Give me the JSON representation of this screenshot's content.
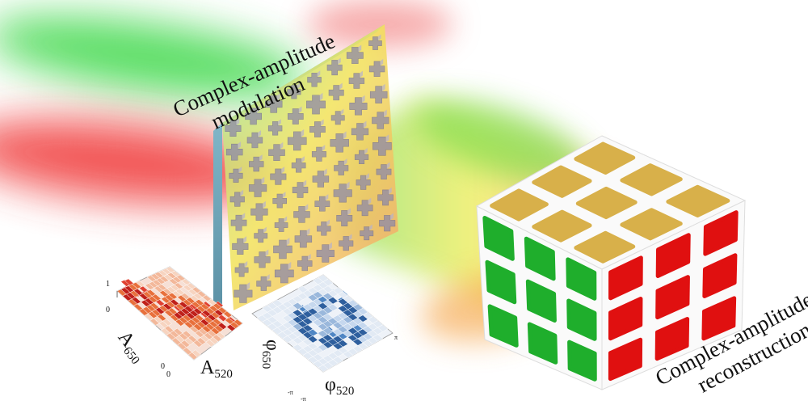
{
  "labels": {
    "modulation_line1": "Complex-amplitude",
    "modulation_line2": "modulation",
    "reconstruction_line1": "Complex-amplitude",
    "reconstruction_line2": "reconstruction"
  },
  "amplitude_plot": {
    "axis_a650": "A650",
    "axis_a650_main": "A",
    "axis_a650_sub": "650",
    "axis_a520_main": "A",
    "axis_a520_sub": "520",
    "tick_top": "1",
    "tick_mid": "0",
    "tick_corner_left": "0",
    "tick_corner_right": "0"
  },
  "phase_plot": {
    "axis_phi650_main": "φ",
    "axis_phi650_sub": "650",
    "axis_phi520_main": "φ",
    "axis_phi520_sub": "520",
    "tick_minus_pi_a": "-π",
    "tick_minus_pi_b": "-π",
    "tick_pi": "π"
  },
  "colors": {
    "beam_green": "#3cd84a",
    "beam_red": "#f03a3a",
    "beam_yellow": "#f4f05a",
    "cube_top": "#d8b04a",
    "cube_left": "#1fae2c",
    "cube_right": "#e01010",
    "amp_pixels": "#d85a3a",
    "phase_pixels": "#3a6cb0"
  },
  "cube": {
    "faces": [
      "top",
      "left",
      "right"
    ],
    "grid": 3
  }
}
